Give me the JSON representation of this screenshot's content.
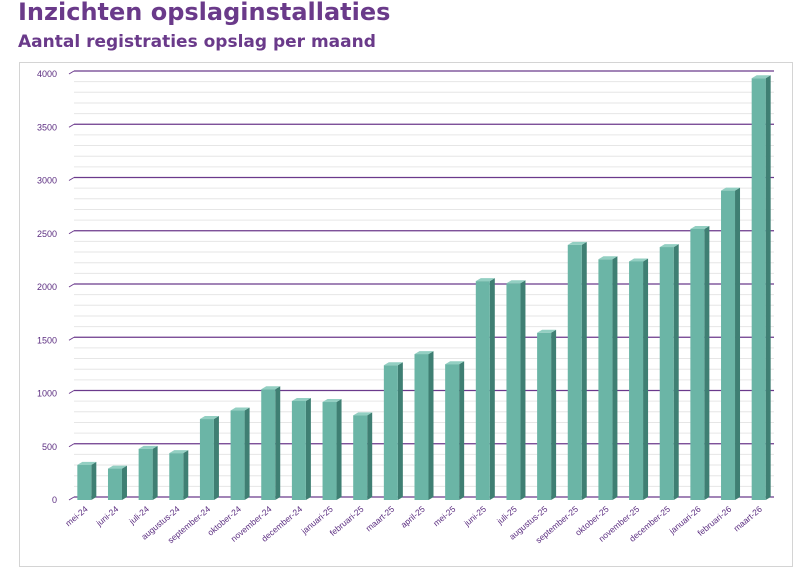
{
  "title": "Inzichten opslaginstallaties",
  "subtitle": "Aantal registraties opslag per maand",
  "colors": {
    "heading": "#6a3a8a",
    "axis_text": "#5b2d80",
    "major_grid": "#6b3a8c",
    "minor_grid": "#e6e6e6",
    "bar_front": "#6bb5a6",
    "bar_side": "#3f7f73",
    "bar_top": "#93cfc2"
  },
  "chart_data": {
    "type": "bar",
    "title": "",
    "xlabel": "",
    "ylabel": "",
    "ylim": [
      0,
      4000
    ],
    "yticks": [
      0,
      500,
      1000,
      1500,
      2000,
      2500,
      3000,
      3500,
      4000
    ],
    "grid": true,
    "legend": "none",
    "categories": [
      "mei-24",
      "juni-24",
      "juli-24",
      "augustus-24",
      "september-24",
      "oktober-24",
      "november-24",
      "december-24",
      "januari-25",
      "februari-25",
      "maart-25",
      "april-25",
      "mei-25",
      "juni-25",
      "juli-25",
      "augustus-25",
      "september-25",
      "oktober-25",
      "november-25",
      "december-25",
      "januari-26",
      "februari-26",
      "maart-26"
    ],
    "values": [
      330,
      295,
      480,
      440,
      760,
      840,
      1040,
      930,
      920,
      795,
      1265,
      1370,
      1275,
      2055,
      2035,
      1570,
      2395,
      2260,
      2240,
      2375,
      2545,
      2905,
      3960
    ]
  }
}
